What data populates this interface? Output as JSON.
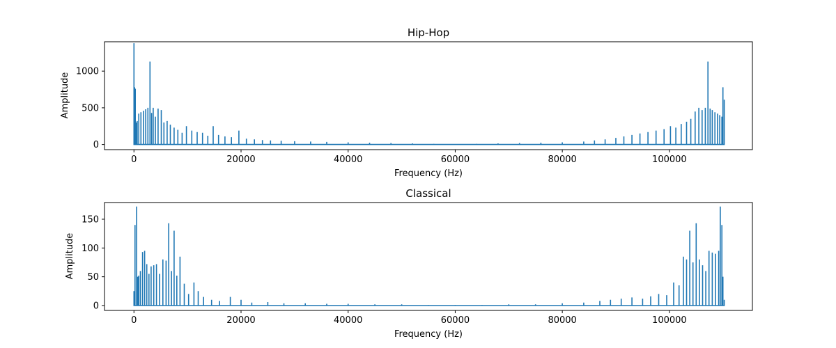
{
  "chart_data": [
    {
      "type": "line",
      "title": "Hip-Hop",
      "xlabel": "Frequency (Hz)",
      "ylabel": "Amplitude",
      "xlim": [
        -5500,
        115500
      ],
      "ylim": [
        -70,
        1400
      ],
      "xticks": [
        0,
        20000,
        40000,
        60000,
        80000,
        100000
      ],
      "yticks": [
        0,
        500,
        1000
      ],
      "grid": false,
      "color": "#1f77b4",
      "series": [
        {
          "x": [
            0,
            120,
            250,
            400,
            600,
            900,
            1300,
            1800,
            2200,
            2600,
            3000,
            3300,
            3600,
            4000,
            4500,
            5100,
            5600,
            6200,
            6800,
            7500,
            8200,
            9000,
            9800,
            10800,
            11800,
            12800,
            13800,
            14800,
            15800,
            17000,
            18200,
            19600,
            21000,
            22500,
            24000,
            25500,
            27500,
            30000,
            33000,
            36000,
            40000,
            44000,
            48000,
            52000,
            56000,
            60000,
            64000,
            68000,
            72000,
            76000,
            80000,
            84000,
            86000,
            88000,
            90000,
            91500,
            93000,
            94500,
            96000,
            97500,
            99000,
            100200,
            101200,
            102200,
            103200,
            104000,
            104800,
            105500,
            106100,
            106700,
            107200,
            107600,
            108000,
            108500,
            109000,
            109400,
            109800,
            110000,
            110250
          ],
          "y": [
            1380,
            780,
            760,
            300,
            320,
            420,
            440,
            460,
            480,
            500,
            1130,
            430,
            500,
            380,
            490,
            470,
            300,
            320,
            270,
            230,
            200,
            160,
            250,
            190,
            170,
            160,
            120,
            250,
            130,
            110,
            100,
            190,
            80,
            70,
            60,
            55,
            50,
            45,
            40,
            35,
            30,
            25,
            20,
            15,
            10,
            8,
            10,
            15,
            20,
            25,
            30,
            40,
            55,
            70,
            90,
            110,
            130,
            150,
            170,
            190,
            210,
            250,
            230,
            280,
            310,
            350,
            450,
            500,
            470,
            500,
            1130,
            490,
            470,
            440,
            420,
            400,
            380,
            780,
            610
          ]
        }
      ]
    },
    {
      "type": "line",
      "title": "Classical",
      "xlabel": "Frequency (Hz)",
      "ylabel": "Amplitude",
      "xlim": [
        -5500,
        115500
      ],
      "ylim": [
        -8.5,
        179
      ],
      "xticks": [
        0,
        20000,
        40000,
        60000,
        80000,
        100000
      ],
      "yticks": [
        0,
        50,
        100,
        150
      ],
      "grid": false,
      "color": "#1f77b4",
      "series": [
        {
          "x": [
            0,
            200,
            500,
            700,
            900,
            1200,
            1600,
            2000,
            2400,
            2800,
            3200,
            3700,
            4200,
            4800,
            5400,
            6000,
            6500,
            7000,
            7500,
            8000,
            8600,
            9400,
            10200,
            11200,
            12000,
            13000,
            14500,
            16000,
            18000,
            20000,
            22000,
            25000,
            28000,
            32000,
            36000,
            40000,
            45000,
            50000,
            55000,
            60000,
            65000,
            70000,
            75000,
            80000,
            84000,
            87000,
            89000,
            91000,
            93000,
            95000,
            96500,
            98000,
            99500,
            100800,
            101800,
            102600,
            103200,
            103800,
            104400,
            105000,
            105600,
            106200,
            106800,
            107400,
            108000,
            108600,
            109200,
            109500,
            109800,
            110000,
            110250
          ],
          "y": [
            25,
            140,
            172,
            50,
            52,
            60,
            93,
            95,
            72,
            55,
            68,
            70,
            72,
            55,
            80,
            78,
            143,
            60,
            130,
            52,
            85,
            38,
            20,
            40,
            25,
            15,
            10,
            8,
            15,
            10,
            5,
            6,
            4,
            4,
            3,
            3,
            2,
            2,
            1,
            1,
            1,
            2,
            2,
            4,
            5,
            8,
            10,
            12,
            14,
            12,
            16,
            20,
            18,
            40,
            35,
            85,
            80,
            130,
            75,
            143,
            80,
            70,
            60,
            95,
            92,
            90,
            95,
            172,
            140,
            50,
            10
          ]
        }
      ]
    }
  ]
}
